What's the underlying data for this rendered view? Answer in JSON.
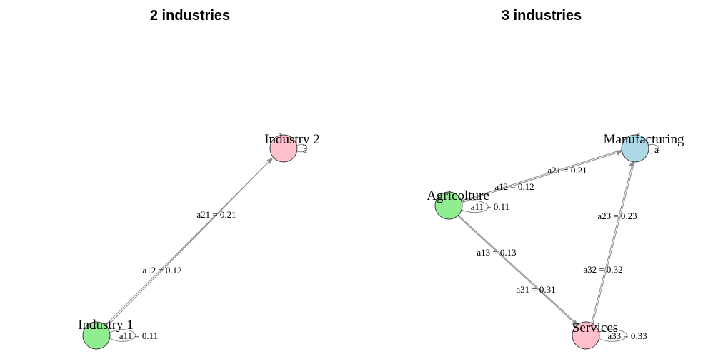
{
  "panels": [
    {
      "title": "2 industries",
      "nodes": [
        {
          "id": "i1",
          "label": "Industry 1",
          "color": "#90EE90"
        },
        {
          "id": "i2",
          "label": "Industry 2",
          "color": "#FFC0CB"
        }
      ],
      "edge_labels": {
        "a11": "a11 = 0.11",
        "a12": "a12 = 0.12",
        "a21": "a21 = 0.21",
        "a22": "a"
      }
    },
    {
      "title": "3 industries",
      "nodes": [
        {
          "id": "agr",
          "label": "Agricolture",
          "color": "#90EE90"
        },
        {
          "id": "man",
          "label": "Manufacturing",
          "color": "#ADD8E6"
        },
        {
          "id": "ser",
          "label": "Services",
          "color": "#FFC0CB"
        }
      ],
      "edge_labels": {
        "a11": "a11 = 0.11",
        "a12": "a12 = 0.12",
        "a13": "a13 = 0.13",
        "a21": "a21 = 0.21",
        "a22": "a",
        "a23": "a23 = 0.23",
        "a31": "a31 = 0.31",
        "a32": "a32 = 0.32",
        "a33": "a33 = 0.33"
      }
    }
  ]
}
